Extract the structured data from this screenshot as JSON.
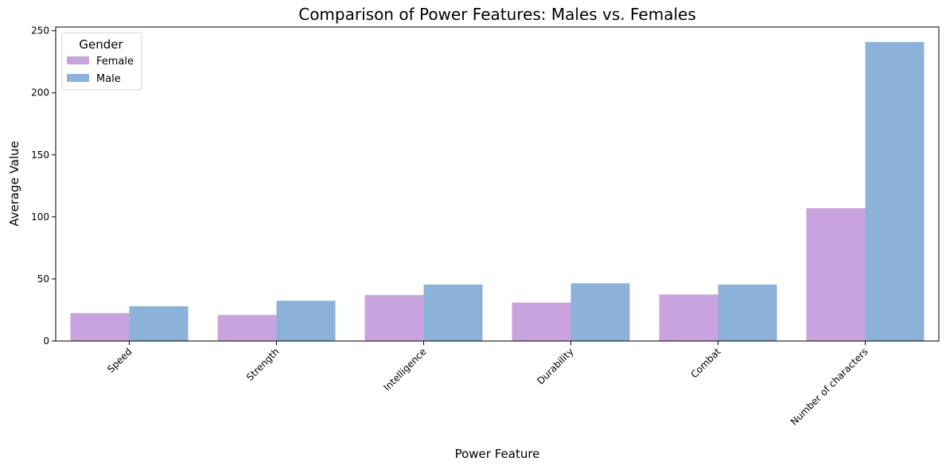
{
  "chart_data": {
    "type": "bar",
    "title": "Comparison of Power Features: Males vs. Females",
    "xlabel": "Power Feature",
    "ylabel": "Average Value",
    "categories": [
      "Speed",
      "Strength",
      "Intelligence",
      "Durability",
      "Combat",
      "Number of characters"
    ],
    "series": [
      {
        "name": "Female",
        "color": "#c9a3de",
        "values": [
          22.5,
          21,
          37,
          31,
          37.5,
          107
        ]
      },
      {
        "name": "Male",
        "color": "#8db2da",
        "values": [
          28,
          32.5,
          45.5,
          46.5,
          45.5,
          241
        ]
      }
    ],
    "ylim": [
      0,
      253
    ],
    "yticks": [
      0,
      50,
      100,
      150,
      200,
      250
    ],
    "grid": false,
    "legend": {
      "title": "Gender",
      "placement": "top-left"
    }
  }
}
